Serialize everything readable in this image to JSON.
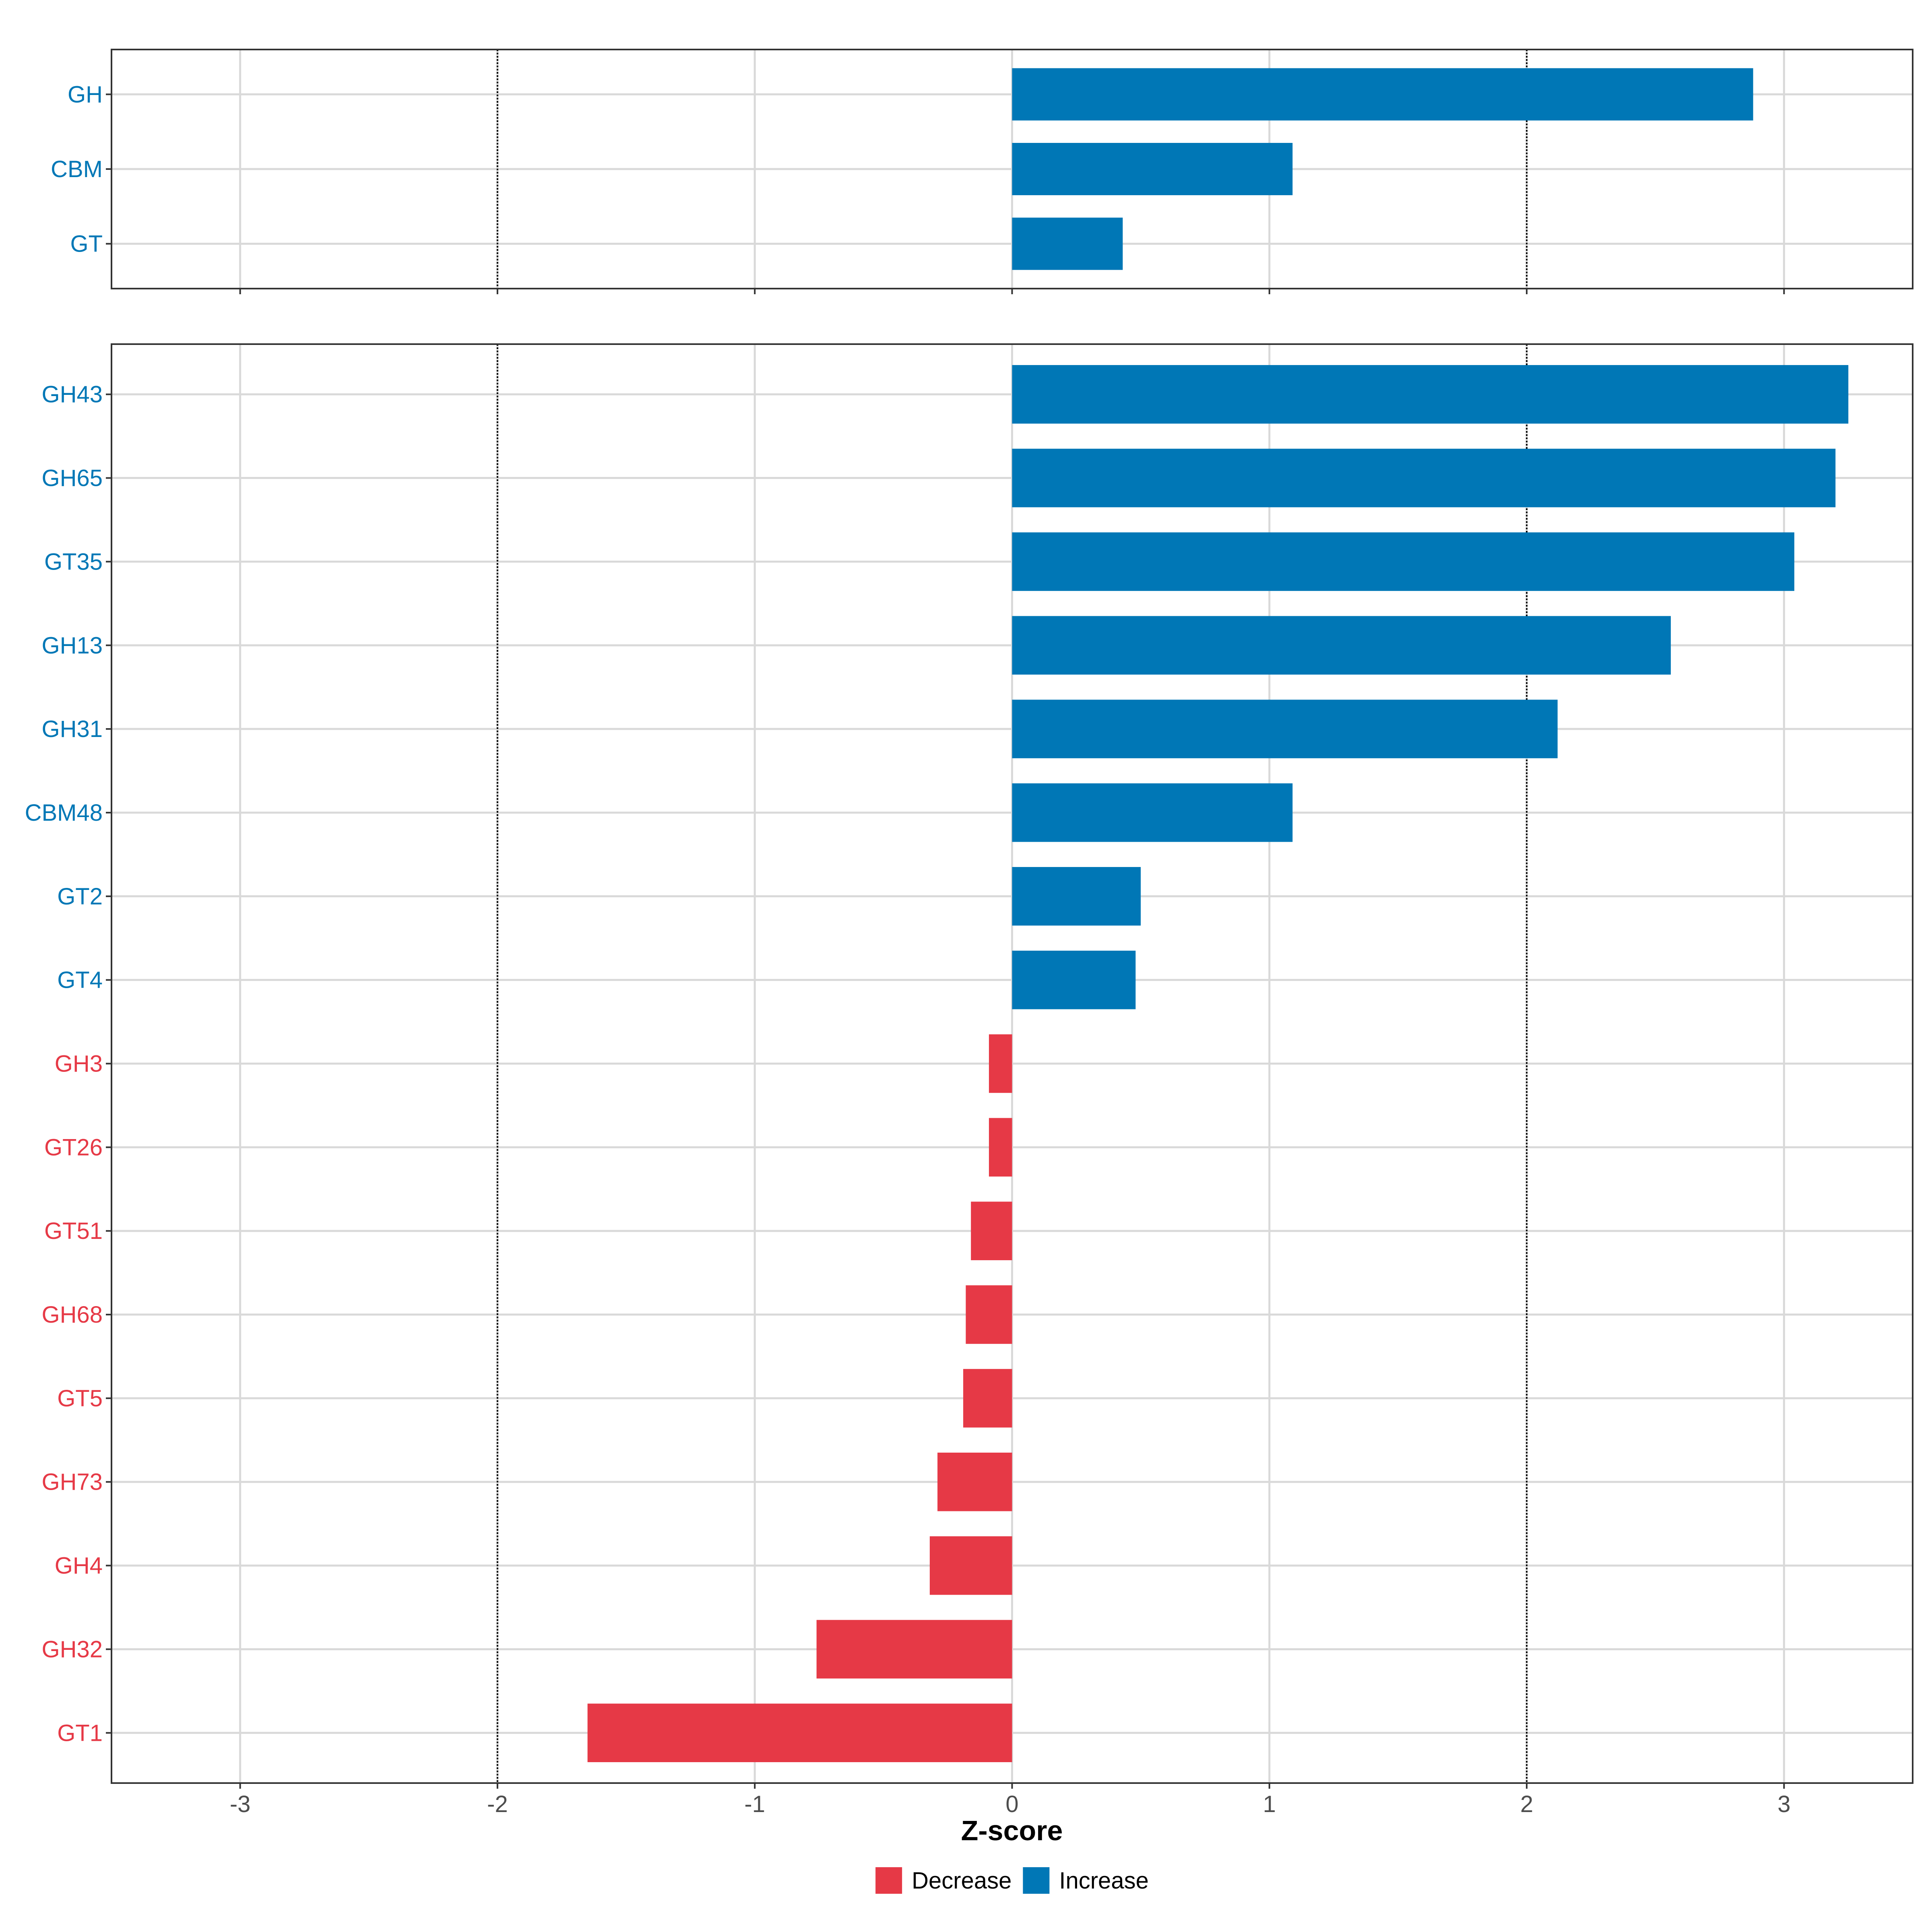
{
  "chart_data": {
    "type": "bar",
    "orientation": "horizontal",
    "xlabel": "Z-score",
    "xlim": [
      -3.5,
      3.5
    ],
    "xticks": [
      -3,
      -2,
      -1,
      0,
      1,
      2,
      3
    ],
    "reference_lines": [
      -2,
      2
    ],
    "grid": true,
    "legend": {
      "position": "bottom",
      "entries": [
        {
          "label": "Decrease",
          "color": "#E63946"
        },
        {
          "label": "Increase",
          "color": "#0077B6"
        }
      ]
    },
    "colors": {
      "increase": "#0077B6",
      "decrease": "#E63946"
    },
    "panels": [
      {
        "categories": [
          "GH",
          "CBM",
          "GT"
        ],
        "values": [
          2.88,
          1.09,
          0.43
        ],
        "direction": [
          "Increase",
          "Increase",
          "Increase"
        ]
      },
      {
        "categories": [
          "GH43",
          "GH65",
          "GT35",
          "GH13",
          "GH31",
          "CBM48",
          "GT2",
          "GT4",
          "GH3",
          "GT26",
          "GT51",
          "GH68",
          "GT5",
          "GH73",
          "GH4",
          "GH32",
          "GT1"
        ],
        "values": [
          3.25,
          3.2,
          3.04,
          2.56,
          2.12,
          1.09,
          0.5,
          0.48,
          -0.09,
          -0.09,
          -0.16,
          -0.18,
          -0.19,
          -0.29,
          -0.32,
          -0.76,
          -1.65
        ],
        "direction": [
          "Increase",
          "Increase",
          "Increase",
          "Increase",
          "Increase",
          "Increase",
          "Increase",
          "Increase",
          "Decrease",
          "Decrease",
          "Decrease",
          "Decrease",
          "Decrease",
          "Decrease",
          "Decrease",
          "Decrease",
          "Decrease"
        ]
      }
    ]
  }
}
